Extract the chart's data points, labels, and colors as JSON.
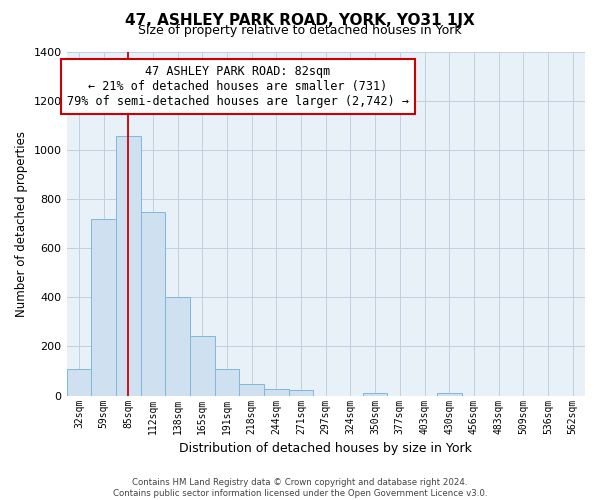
{
  "title": "47, ASHLEY PARK ROAD, YORK, YO31 1JX",
  "subtitle": "Size of property relative to detached houses in York",
  "xlabel": "Distribution of detached houses by size in York",
  "ylabel": "Number of detached properties",
  "bar_values": [
    107,
    720,
    1057,
    748,
    400,
    243,
    110,
    48,
    27,
    22,
    0,
    0,
    10,
    0,
    0,
    10,
    0,
    0,
    0,
    0,
    0
  ],
  "bar_labels": [
    "32sqm",
    "59sqm",
    "85sqm",
    "112sqm",
    "138sqm",
    "165sqm",
    "191sqm",
    "218sqm",
    "244sqm",
    "271sqm",
    "297sqm",
    "324sqm",
    "350sqm",
    "377sqm",
    "403sqm",
    "430sqm",
    "456sqm",
    "483sqm",
    "509sqm",
    "536sqm",
    "562sqm"
  ],
  "bar_color": "#cfe0f0",
  "bar_edge_color": "#7fb8d8",
  "vline_x": 2,
  "vline_color": "#cc0000",
  "ylim": [
    0,
    1400
  ],
  "yticks": [
    0,
    200,
    400,
    600,
    800,
    1000,
    1200,
    1400
  ],
  "annotation_title": "47 ASHLEY PARK ROAD: 82sqm",
  "annotation_line1": "← 21% of detached houses are smaller (731)",
  "annotation_line2": "79% of semi-detached houses are larger (2,742) →",
  "footer1": "Contains HM Land Registry data © Crown copyright and database right 2024.",
  "footer2": "Contains public sector information licensed under the Open Government Licence v3.0.",
  "background_color": "#ffffff",
  "plot_bg_color": "#e8f0f8",
  "grid_color": "#c0d0e0"
}
